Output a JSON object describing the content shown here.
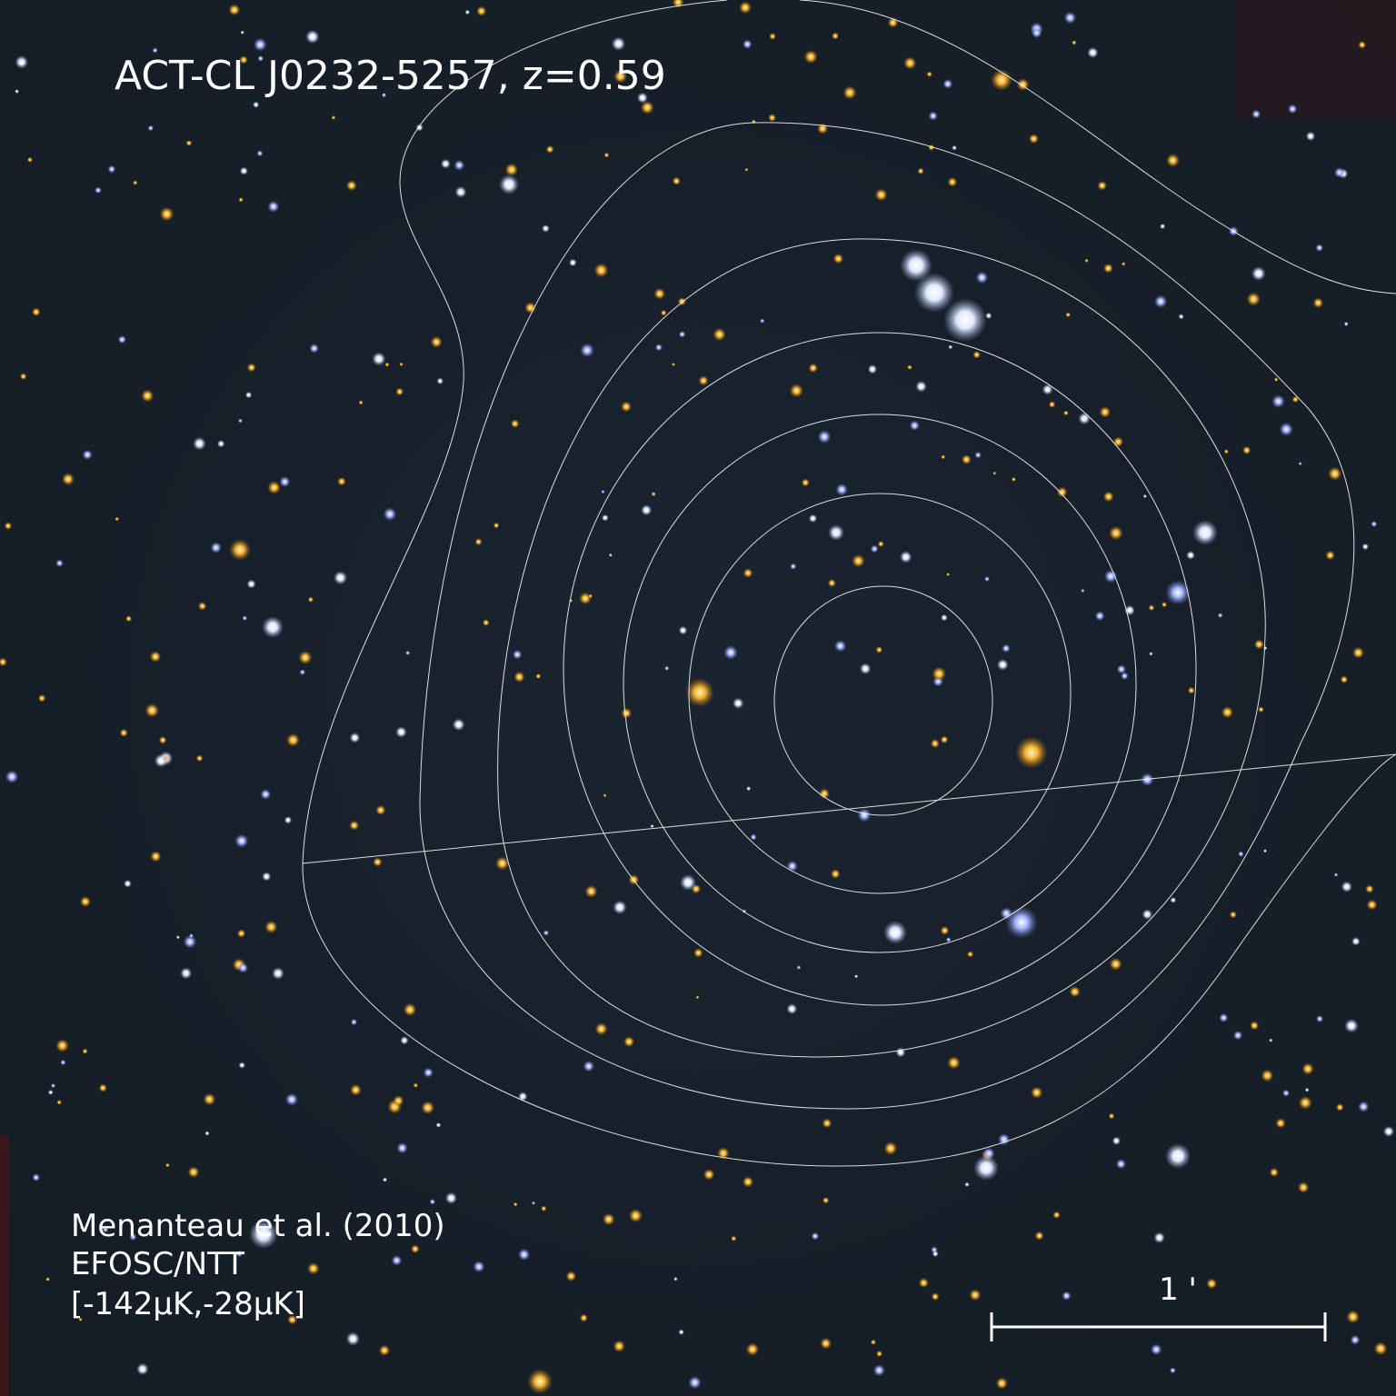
{
  "title": "ACT-CL J0232-5257,  z=0.59",
  "credits": [
    "Menanteau et al. (2010)",
    "EFOSC/NTT",
    "[-142μK,-28μK]"
  ],
  "scale_bar": {
    "label": "1 '"
  }
}
